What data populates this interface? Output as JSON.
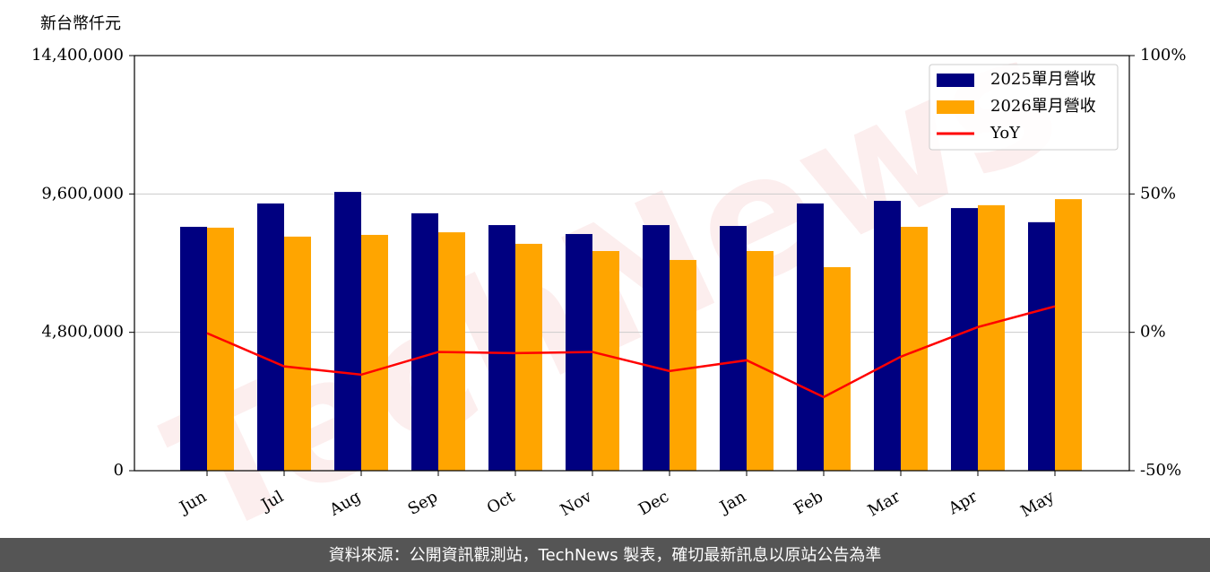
{
  "chart_data": {
    "type": "bar_line",
    "y_label": "新台幣仟元",
    "categories": [
      "Jun",
      "Jul",
      "Aug",
      "Sep",
      "Oct",
      "Nov",
      "Dec",
      "Jan",
      "Feb",
      "Mar",
      "Apr",
      "May"
    ],
    "series": [
      {
        "name": "2025單月營收",
        "color": "#000080",
        "type": "bar",
        "values": [
          8460000,
          9270000,
          9670000,
          8930000,
          8520000,
          8210000,
          8520000,
          8490000,
          9270000,
          9360000,
          9110000,
          8620000
        ]
      },
      {
        "name": "2026單月營收",
        "color": "#ffa500",
        "type": "bar",
        "values": [
          8430000,
          8120000,
          8180000,
          8270000,
          7870000,
          7620000,
          7310000,
          7620000,
          7060000,
          8460000,
          9210000,
          9420000
        ]
      },
      {
        "name": "YoY",
        "color": "#ff0000",
        "type": "line",
        "axis": "y2",
        "values": [
          -0.3,
          -12.3,
          -15.3,
          -7.1,
          -7.5,
          -7.1,
          -14.0,
          -10.1,
          -23.4,
          -8.8,
          1.9,
          9.4
        ]
      }
    ],
    "ylim": [
      0,
      14400000
    ],
    "yticks": [
      {
        "value": 0,
        "label": "0"
      },
      {
        "value": 4800000,
        "label": "4,800,000"
      },
      {
        "value": 9600000,
        "label": "9,600,000"
      },
      {
        "value": 14400000,
        "label": "14,400,000"
      }
    ],
    "y2lim": [
      -50,
      100
    ],
    "y2ticks": [
      {
        "value": -50,
        "label": "-50%"
      },
      {
        "value": 0,
        "label": "0%"
      },
      {
        "value": 50,
        "label": "50%"
      },
      {
        "value": 100,
        "label": "100%"
      }
    ],
    "grid": true,
    "legend": "upper right",
    "watermark": "TechNews",
    "source": "資料來源：公開資訊觀測站，TechNews 製表，確切最新訊息以原站公告為準"
  }
}
